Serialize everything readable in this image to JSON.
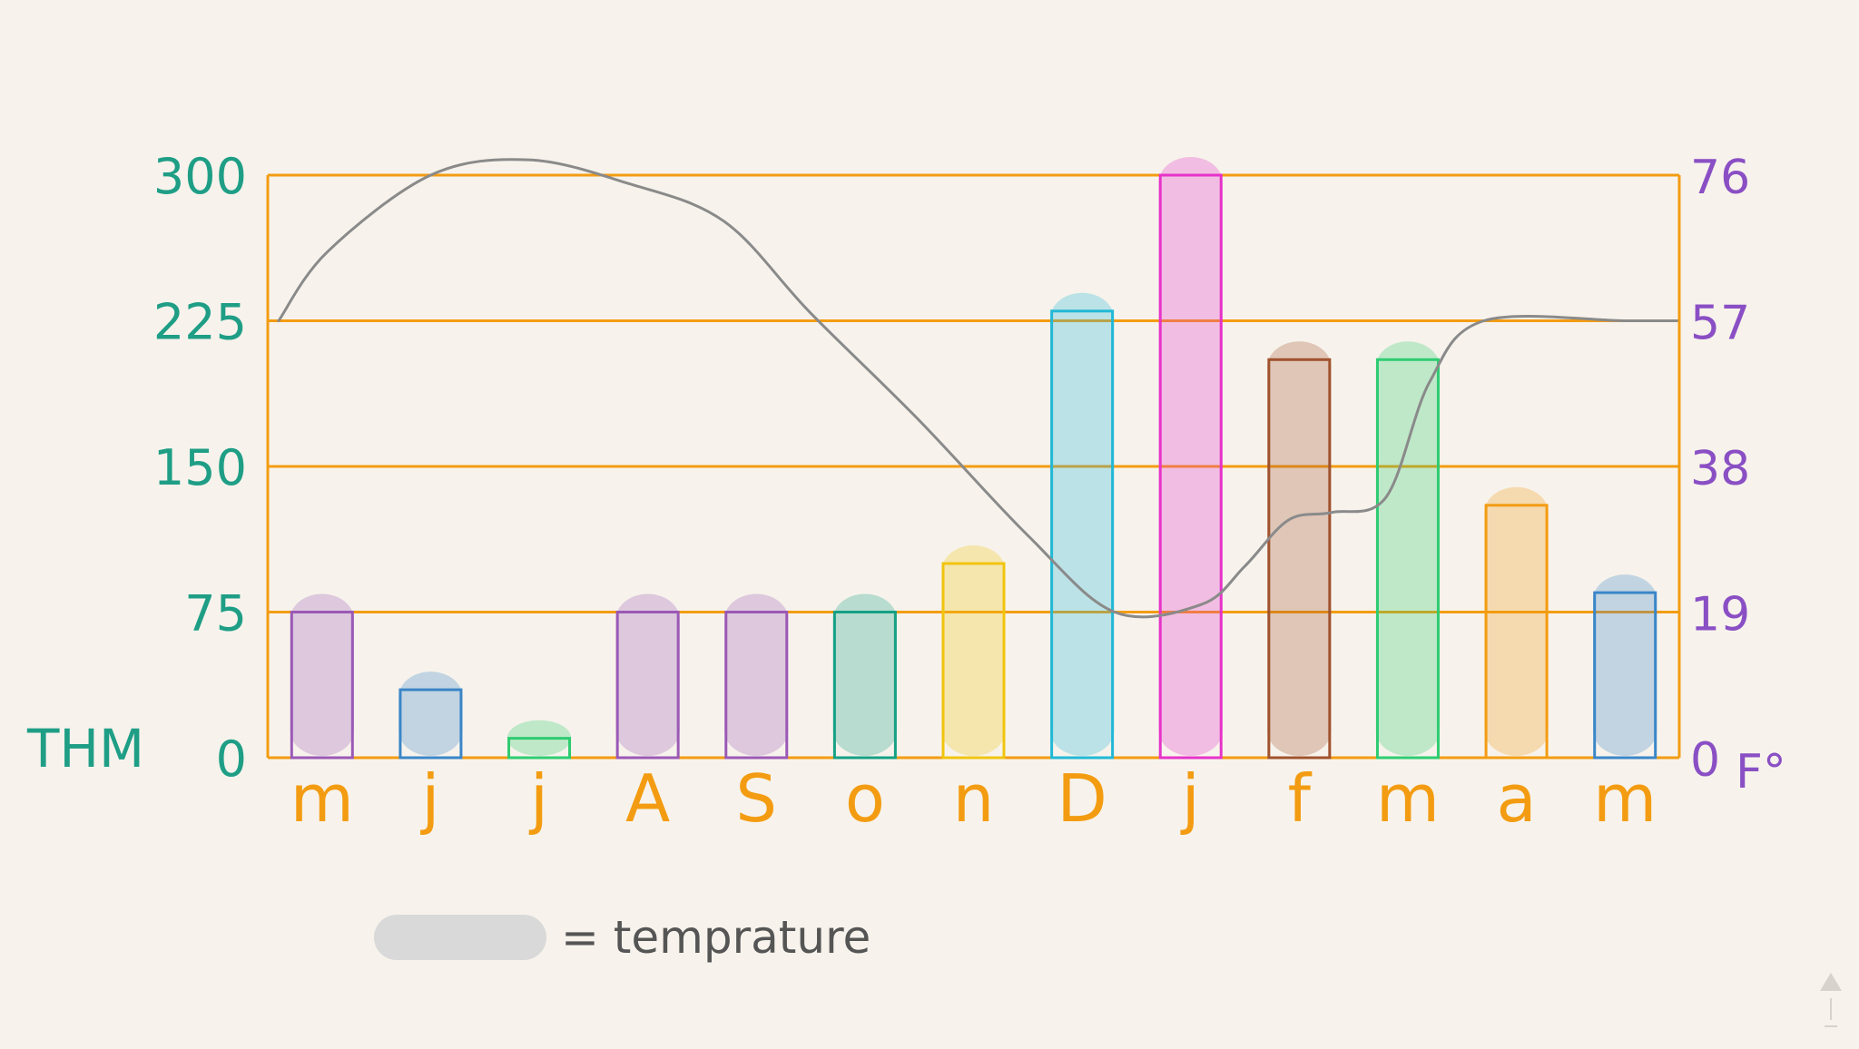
{
  "chart_data": {
    "type": "bar",
    "categories": [
      "m",
      "j",
      "j",
      "A",
      "S",
      "o",
      "n",
      "D",
      "j",
      "f",
      "m",
      "a",
      "m"
    ],
    "series": [
      {
        "values": [
          75,
          35,
          10,
          75,
          75,
          75,
          100,
          230,
          300,
          205,
          205,
          130,
          85
        ],
        "colors": [
          "#9b59b6",
          "#3a86c8",
          "#2ecc71",
          "#9b59b6",
          "#9b59b6",
          "#16a085",
          "#f1c40f",
          "#22b8d6",
          "#e633c9",
          "#a0522d",
          "#2ecc71",
          "#f39c12",
          "#3a86c8"
        ]
      },
      {
        "name": "temprature",
        "type": "line",
        "axis": "right",
        "x": [
          0.1,
          0.55,
          1.5,
          2.4,
          3.3,
          4.2,
          5.0,
          6.0,
          7.0,
          7.8,
          8.6,
          9.0,
          9.4,
          9.8,
          10.3,
          10.7,
          11.2,
          12.5,
          13.0
        ],
        "values": [
          57,
          66,
          76,
          78,
          75,
          70,
          58,
          44,
          29,
          19,
          20,
          25,
          31,
          32,
          34,
          49,
          57,
          57,
          57
        ]
      }
    ],
    "y_left": {
      "label": "THM",
      "ticks": [
        "0",
        "75",
        "150",
        "225",
        "300"
      ],
      "range": [
        0,
        300
      ]
    },
    "y_right": {
      "label": "F°",
      "ticks": [
        "0",
        "19",
        "38",
        "57",
        "76"
      ],
      "range": [
        0,
        76
      ]
    },
    "legend": {
      "text": "= temprature",
      "swatch_color": "#d9d9d9",
      "placement": "bottom-left"
    },
    "grid": true,
    "grid_color": "#f39c12",
    "line_color": "#8a8a8a",
    "left_tick_color": "#1f9e86",
    "right_tick_color": "#8a4fc4",
    "category_color": "#f39c12"
  }
}
